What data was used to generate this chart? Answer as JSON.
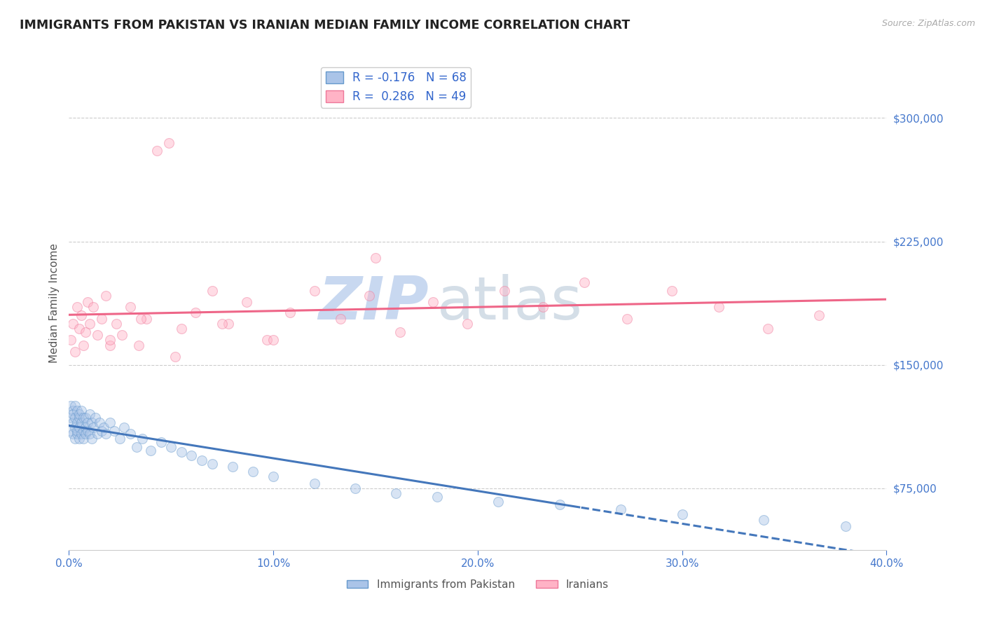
{
  "title": "IMMIGRANTS FROM PAKISTAN VS IRANIAN MEDIAN FAMILY INCOME CORRELATION CHART",
  "source_text": "Source: ZipAtlas.com",
  "ylabel": "Median Family Income",
  "xlim": [
    0.0,
    0.4
  ],
  "ylim": [
    37500,
    337500
  ],
  "yticks": [
    75000,
    150000,
    225000,
    300000
  ],
  "ytick_labels": [
    "$75,000",
    "$150,000",
    "$225,000",
    "$300,000"
  ],
  "xticks": [
    0.0,
    0.1,
    0.2,
    0.3,
    0.4
  ],
  "xtick_labels": [
    "0.0%",
    "10.0%",
    "20.0%",
    "30.0%",
    "40.0%"
  ],
  "pakistan": {
    "name": "Immigrants from Pakistan",
    "R": -0.176,
    "N": 68,
    "scatter_color": "#aac4e8",
    "edge_color": "#6699cc",
    "trend_color": "#4477bb",
    "trend_solid_end": 0.25,
    "x": [
      0.001,
      0.001,
      0.001,
      0.002,
      0.002,
      0.002,
      0.002,
      0.003,
      0.003,
      0.003,
      0.003,
      0.004,
      0.004,
      0.004,
      0.004,
      0.005,
      0.005,
      0.005,
      0.005,
      0.006,
      0.006,
      0.006,
      0.007,
      0.007,
      0.007,
      0.008,
      0.008,
      0.008,
      0.009,
      0.009,
      0.01,
      0.01,
      0.011,
      0.011,
      0.012,
      0.013,
      0.014,
      0.015,
      0.016,
      0.017,
      0.018,
      0.02,
      0.022,
      0.025,
      0.027,
      0.03,
      0.033,
      0.036,
      0.04,
      0.045,
      0.05,
      0.055,
      0.06,
      0.065,
      0.07,
      0.08,
      0.09,
      0.1,
      0.12,
      0.14,
      0.16,
      0.18,
      0.21,
      0.24,
      0.27,
      0.3,
      0.34,
      0.38
    ],
    "y": [
      125000,
      118000,
      110000,
      122000,
      115000,
      108000,
      120000,
      118000,
      112000,
      125000,
      105000,
      115000,
      108000,
      122000,
      110000,
      118000,
      112000,
      105000,
      120000,
      115000,
      108000,
      122000,
      110000,
      118000,
      105000,
      112000,
      118000,
      108000,
      115000,
      110000,
      108000,
      120000,
      115000,
      105000,
      112000,
      118000,
      108000,
      115000,
      110000,
      112000,
      108000,
      115000,
      110000,
      105000,
      112000,
      108000,
      100000,
      105000,
      98000,
      103000,
      100000,
      97000,
      95000,
      92000,
      90000,
      88000,
      85000,
      82000,
      78000,
      75000,
      72000,
      70000,
      67000,
      65000,
      62000,
      59000,
      56000,
      52000
    ]
  },
  "iranians": {
    "name": "Iranians",
    "R": 0.286,
    "N": 49,
    "scatter_color": "#ffb3c6",
    "edge_color": "#ee7799",
    "trend_color": "#ee6688",
    "x": [
      0.001,
      0.002,
      0.003,
      0.004,
      0.005,
      0.006,
      0.007,
      0.008,
      0.009,
      0.01,
      0.012,
      0.014,
      0.016,
      0.018,
      0.02,
      0.023,
      0.026,
      0.03,
      0.034,
      0.038,
      0.043,
      0.049,
      0.055,
      0.062,
      0.07,
      0.078,
      0.087,
      0.097,
      0.108,
      0.12,
      0.133,
      0.147,
      0.162,
      0.178,
      0.195,
      0.213,
      0.232,
      0.252,
      0.273,
      0.295,
      0.318,
      0.342,
      0.367,
      0.02,
      0.035,
      0.052,
      0.075,
      0.1,
      0.15
    ],
    "y": [
      165000,
      175000,
      158000,
      185000,
      172000,
      180000,
      162000,
      170000,
      188000,
      175000,
      185000,
      168000,
      178000,
      192000,
      162000,
      175000,
      168000,
      185000,
      162000,
      178000,
      280000,
      285000,
      172000,
      182000,
      195000,
      175000,
      188000,
      165000,
      182000,
      195000,
      178000,
      192000,
      170000,
      188000,
      175000,
      195000,
      185000,
      200000,
      178000,
      195000,
      185000,
      172000,
      180000,
      165000,
      178000,
      155000,
      175000,
      165000,
      215000
    ]
  },
  "watermark_zip": "ZIP",
  "watermark_atlas": "atlas",
  "watermark_color": "#c8d8f0",
  "background_color": "#ffffff",
  "grid_color": "#cccccc",
  "tick_color": "#4477cc",
  "title_color": "#222222",
  "scatter_size": 100,
  "scatter_alpha": 0.45,
  "trend_lw": 2.2
}
